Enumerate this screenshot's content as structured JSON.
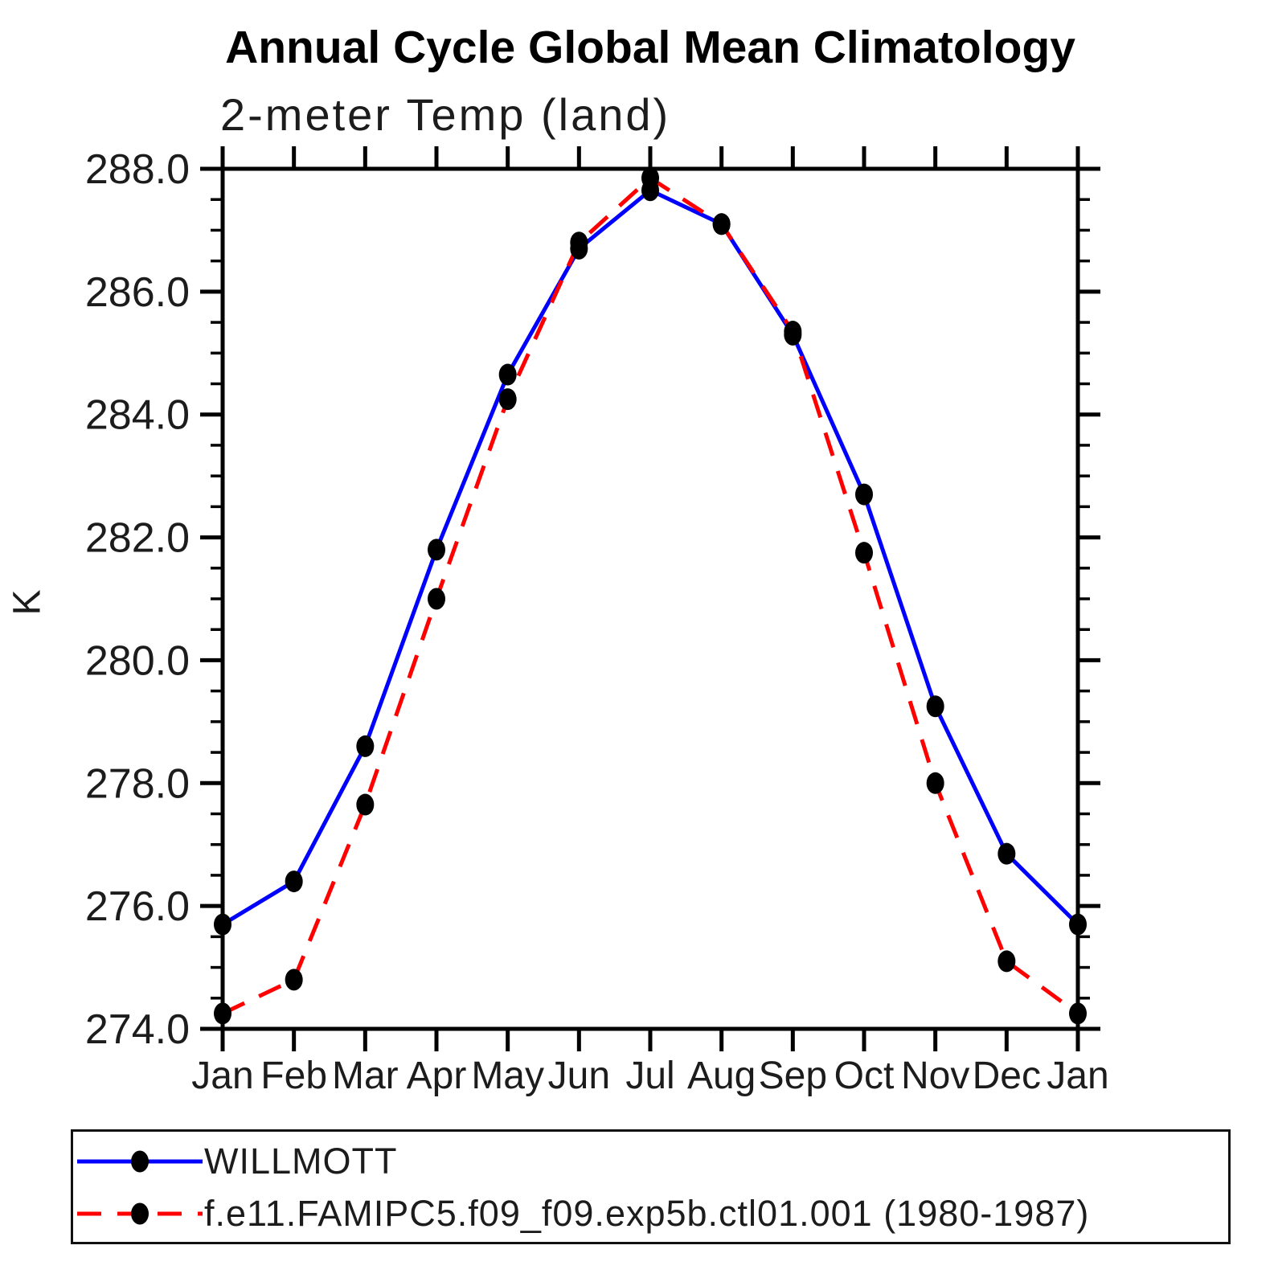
{
  "header": {
    "title": "Annual Cycle Global Mean Climatology",
    "subtitle": "2-meter Temp (land)"
  },
  "chart_data": {
    "type": "line",
    "title": "Annual Cycle Global Mean Climatology",
    "subtitle": "2-meter Temp (land)",
    "xlabel": "",
    "ylabel": "K",
    "ylim": [
      274.0,
      288.0
    ],
    "ytick_step": 2.0,
    "ytick_minor_step": 0.5,
    "ytick_labels": [
      "274.0",
      "276.0",
      "278.0",
      "280.0",
      "282.0",
      "284.0",
      "286.0",
      "288.0"
    ],
    "categories": [
      "Jan",
      "Feb",
      "Mar",
      "Apr",
      "May",
      "Jun",
      "Jul",
      "Aug",
      "Sep",
      "Oct",
      "Nov",
      "Dec",
      "Jan"
    ],
    "grid": false,
    "legend_position": "bottom",
    "marker_color": "#000000",
    "axis_color": "#000000",
    "series": [
      {
        "key": "willmott",
        "name": "WILLMOTT",
        "color": "#0000ff",
        "line_style": "solid",
        "values": [
          275.7,
          276.4,
          278.6,
          281.8,
          284.65,
          286.7,
          287.65,
          287.1,
          285.3,
          282.7,
          279.25,
          276.85,
          275.7
        ]
      },
      {
        "key": "model",
        "name": "f.e11.FAMIPC5.f09_f09.exp5b.ctl01.001 (1980-1987)",
        "color": "#ff0000",
        "line_style": "dashed",
        "values": [
          274.25,
          274.8,
          277.65,
          281.0,
          284.25,
          286.8,
          287.85,
          287.1,
          285.35,
          281.75,
          278.0,
          275.1,
          274.25
        ]
      }
    ]
  },
  "legend": {
    "items": [
      {
        "label": "WILLMOTT"
      },
      {
        "label": "f.e11.FAMIPC5.f09_f09.exp5b.ctl01.001 (1980-1987)"
      }
    ]
  }
}
